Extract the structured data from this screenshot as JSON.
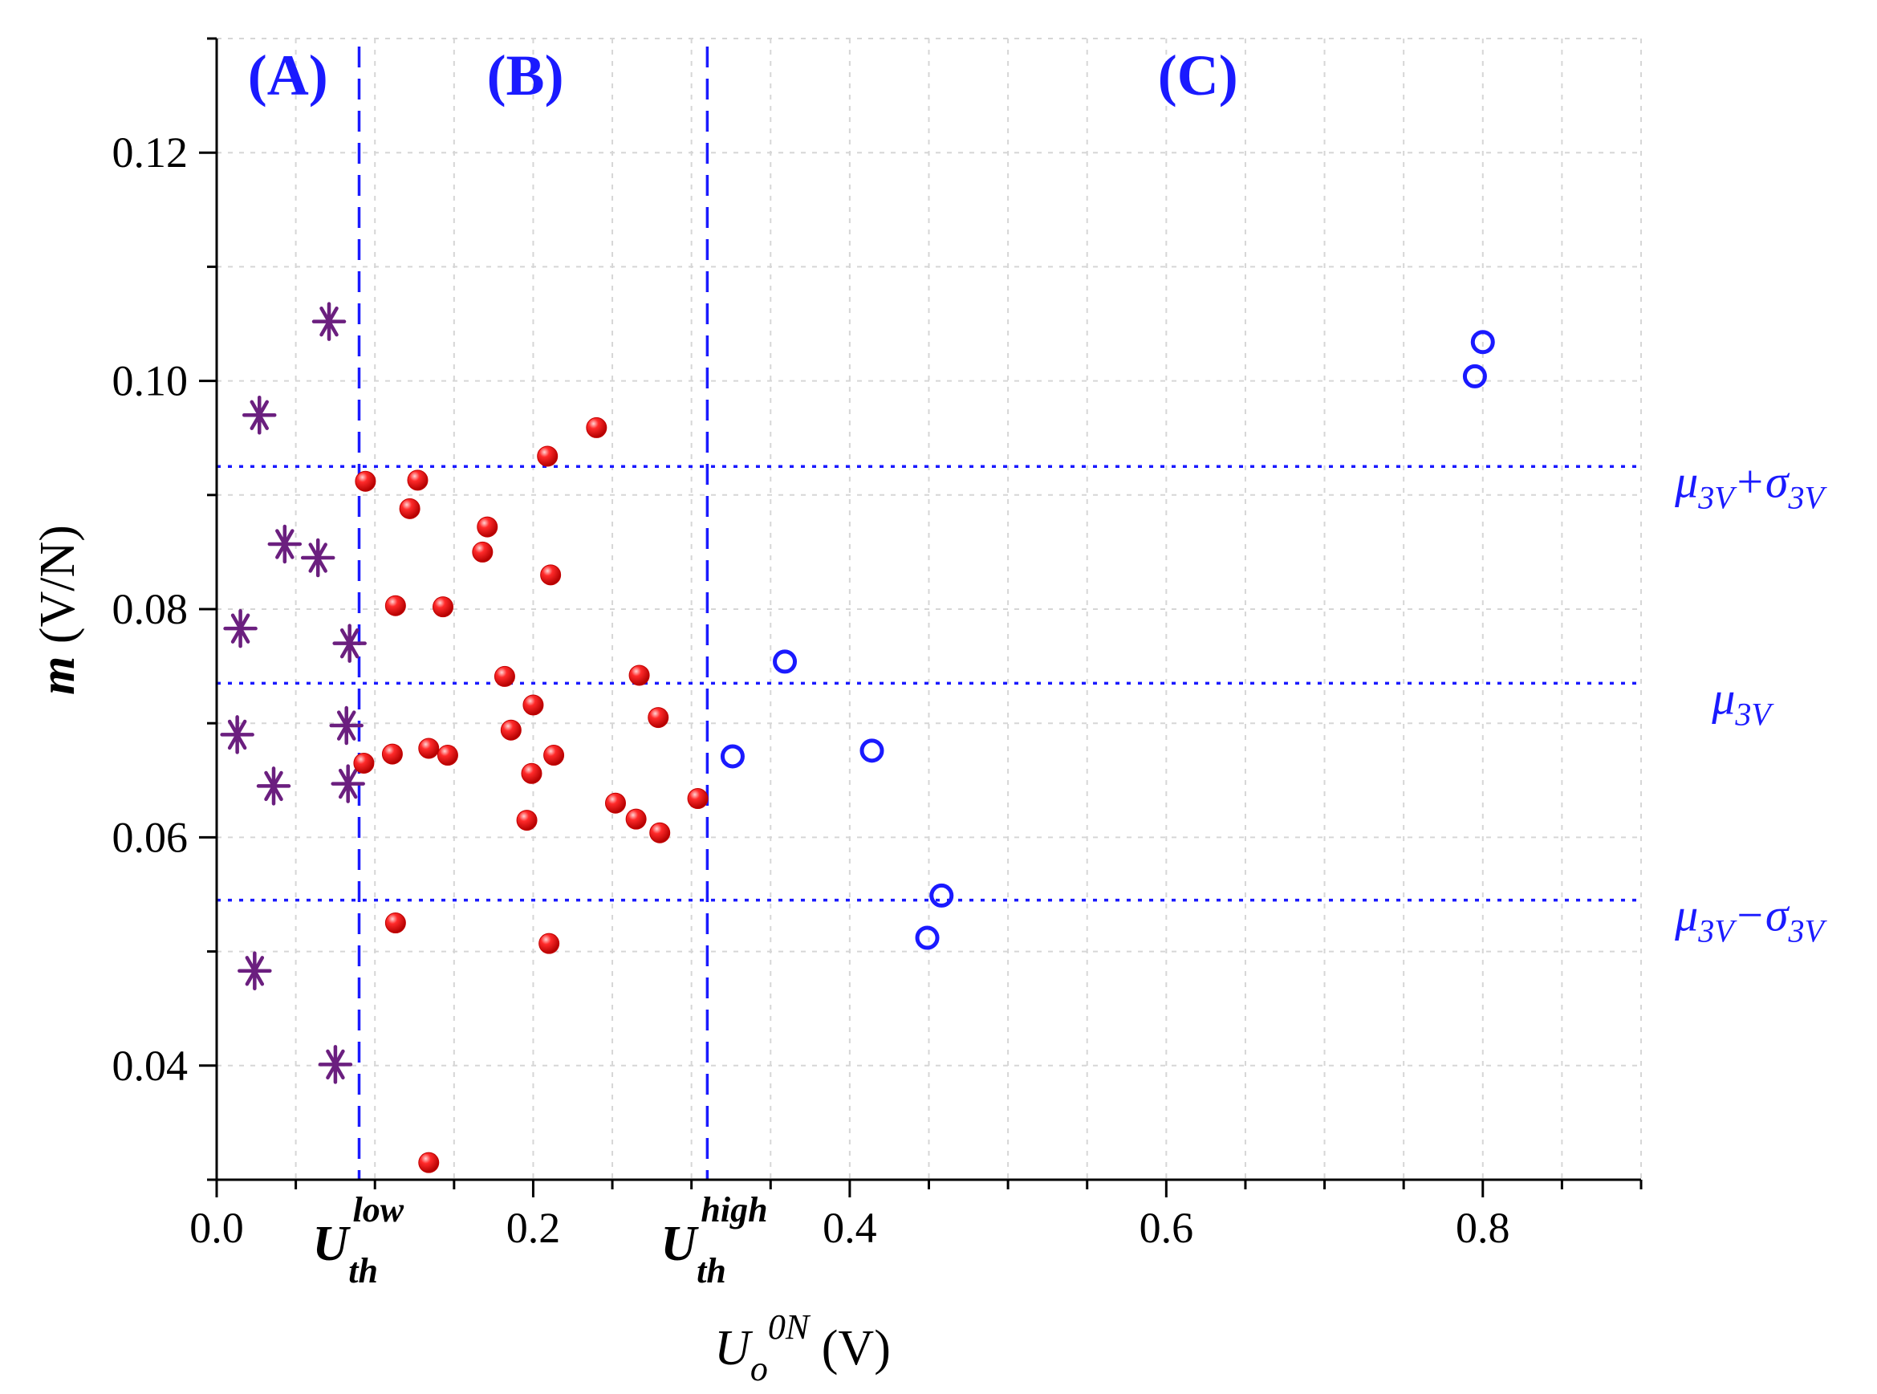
{
  "chart_data": {
    "type": "scatter",
    "xlabel": {
      "main": "U",
      "sub": "o",
      "sup": "0N",
      "unit": "(V)"
    },
    "ylabel": {
      "main": "m",
      "unit": "(V/N)"
    },
    "xlim": [
      0.0,
      0.9
    ],
    "ylim": [
      0.03,
      0.13
    ],
    "x_ticks": [
      0.0,
      0.2,
      0.4,
      0.6,
      0.8
    ],
    "x_tick_labels": [
      "0.0",
      "0.2",
      "0.4",
      "0.6",
      "0.8"
    ],
    "y_ticks": [
      0.04,
      0.06,
      0.08,
      0.1,
      0.12
    ],
    "y_tick_labels": [
      "0.04",
      "0.06",
      "0.08",
      "0.10",
      "0.12"
    ],
    "grid": true,
    "regions": [
      {
        "label": "(A)",
        "x": 0.045
      },
      {
        "label": "(B)",
        "x": 0.195
      },
      {
        "label": "(C)",
        "x": 0.62
      }
    ],
    "thresholds": [
      {
        "name": "low",
        "x": 0.09,
        "main": "U",
        "sub": "th",
        "sup": "low"
      },
      {
        "name": "high",
        "x": 0.31,
        "main": "U",
        "sub": "th",
        "sup": "high"
      }
    ],
    "reference_lines": [
      {
        "name": "mu_plus_sigma",
        "y": 0.0925,
        "parts": [
          {
            "t": "μ"
          },
          {
            "t": "3V",
            "sub": true
          },
          {
            "t": "+σ"
          },
          {
            "t": "3V",
            "sub": true
          }
        ]
      },
      {
        "name": "mu",
        "y": 0.0735,
        "parts": [
          {
            "t": "μ"
          },
          {
            "t": "3V",
            "sub": true
          }
        ]
      },
      {
        "name": "mu_minus_sigma",
        "y": 0.0545,
        "parts": [
          {
            "t": "μ"
          },
          {
            "t": "3V",
            "sub": true
          },
          {
            "t": "−σ"
          },
          {
            "t": "3V",
            "sub": true
          }
        ]
      }
    ],
    "series": [
      {
        "name": "region-A",
        "marker": "asterisk",
        "color": "#6b1f7f",
        "points": [
          [
            0.071,
            0.1052
          ],
          [
            0.027,
            0.097
          ],
          [
            0.043,
            0.0857
          ],
          [
            0.064,
            0.0845
          ],
          [
            0.015,
            0.0783
          ],
          [
            0.084,
            0.077
          ],
          [
            0.013,
            0.069
          ],
          [
            0.082,
            0.0698
          ],
          [
            0.036,
            0.0645
          ],
          [
            0.083,
            0.0647
          ],
          [
            0.024,
            0.0483
          ],
          [
            0.075,
            0.0401
          ]
        ]
      },
      {
        "name": "region-B",
        "marker": "filled-circle",
        "color": "#e8121b",
        "points": [
          [
            0.094,
            0.0912
          ],
          [
            0.127,
            0.0913
          ],
          [
            0.122,
            0.0888
          ],
          [
            0.171,
            0.0872
          ],
          [
            0.168,
            0.085
          ],
          [
            0.209,
            0.0934
          ],
          [
            0.24,
            0.0959
          ],
          [
            0.211,
            0.083
          ],
          [
            0.113,
            0.0803
          ],
          [
            0.143,
            0.0802
          ],
          [
            0.182,
            0.0741
          ],
          [
            0.2,
            0.0716
          ],
          [
            0.267,
            0.0742
          ],
          [
            0.186,
            0.0694
          ],
          [
            0.279,
            0.0705
          ],
          [
            0.093,
            0.0665
          ],
          [
            0.111,
            0.0673
          ],
          [
            0.134,
            0.0678
          ],
          [
            0.146,
            0.0672
          ],
          [
            0.213,
            0.0672
          ],
          [
            0.199,
            0.0656
          ],
          [
            0.252,
            0.063
          ],
          [
            0.265,
            0.0616
          ],
          [
            0.196,
            0.0615
          ],
          [
            0.28,
            0.0604
          ],
          [
            0.304,
            0.0634
          ],
          [
            0.113,
            0.0525
          ],
          [
            0.21,
            0.0507
          ],
          [
            0.134,
            0.0315
          ]
        ]
      },
      {
        "name": "region-C",
        "marker": "open-circle",
        "color": "#1a1aff",
        "points": [
          [
            0.326,
            0.0671
          ],
          [
            0.359,
            0.0754
          ],
          [
            0.414,
            0.0676
          ],
          [
            0.458,
            0.0549
          ],
          [
            0.449,
            0.0512
          ],
          [
            0.795,
            0.1004
          ],
          [
            0.8,
            0.1034
          ]
        ]
      }
    ]
  }
}
